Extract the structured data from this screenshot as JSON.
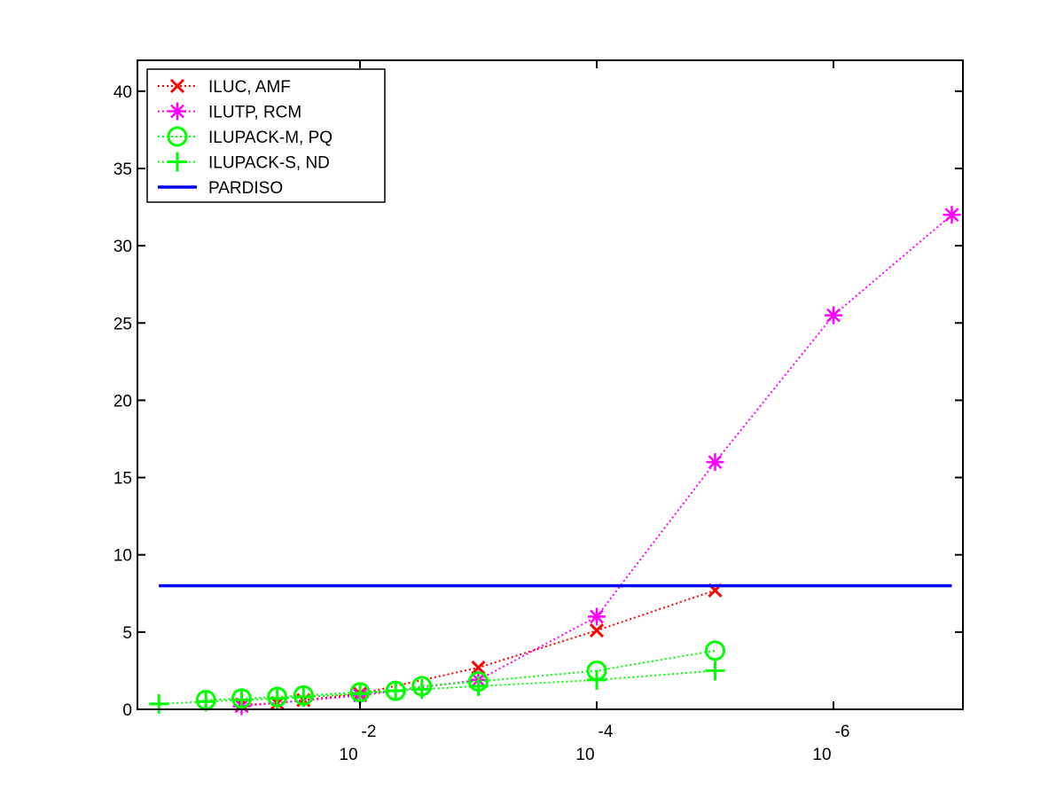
{
  "chart_data": {
    "type": "line",
    "title": "",
    "xlabel": "",
    "ylabel": "",
    "x_scale": "log-reversed",
    "xlim": [
      0.25,
      1.4e-07
    ],
    "ylim": [
      0,
      42
    ],
    "y_ticks": [
      0,
      5,
      10,
      15,
      20,
      25,
      30,
      35,
      40
    ],
    "x_ticks": [
      {
        "value": 0.01,
        "base": "10",
        "exponent": "-2"
      },
      {
        "value": 0.0001,
        "base": "10",
        "exponent": "-4"
      },
      {
        "value": 1e-06,
        "base": "10",
        "exponent": "-6"
      }
    ],
    "grid": false,
    "legend_position": "top-left",
    "series": [
      {
        "name": "ILUC, AMF",
        "color": "#ff0000",
        "marker": "x",
        "line_style": "dotted",
        "x": [
          0.1,
          0.05,
          0.03,
          0.01,
          0.001,
          0.0001,
          1e-05
        ],
        "y": [
          0.3,
          0.4,
          0.6,
          1.0,
          2.7,
          5.1,
          7.7
        ]
      },
      {
        "name": "ILUTP, RCM",
        "color": "#ff00ff",
        "marker": "asterisk",
        "line_style": "dotted",
        "x": [
          0.1,
          0.01,
          0.001,
          0.0001,
          1e-05,
          1e-06,
          1e-07
        ],
        "y": [
          0.2,
          0.9,
          1.9,
          6.0,
          16.0,
          25.5,
          32.0
        ]
      },
      {
        "name": "ILUPACK-M, PQ",
        "color": "#00ff00",
        "marker": "circle",
        "line_style": "dotted",
        "x": [
          0.2,
          0.1,
          0.05,
          0.03,
          0.01,
          0.005,
          0.003,
          0.001,
          0.0001,
          1e-05
        ],
        "y": [
          0.6,
          0.7,
          0.8,
          0.9,
          1.1,
          1.2,
          1.5,
          1.8,
          2.5,
          3.8
        ]
      },
      {
        "name": "ILUPACK-S, ND",
        "color": "#00ff00",
        "marker": "plus",
        "line_style": "dotted",
        "x": [
          0.5,
          0.2,
          0.1,
          0.05,
          0.03,
          0.01,
          0.005,
          0.003,
          0.001,
          0.0001,
          1e-05
        ],
        "y": [
          0.35,
          0.5,
          0.6,
          0.7,
          0.8,
          1.0,
          1.2,
          1.3,
          1.5,
          1.9,
          2.5
        ]
      },
      {
        "name": "PARDISO",
        "color": "#0000ff",
        "marker": "none",
        "line_style": "solid",
        "x": [
          0.5,
          1e-07
        ],
        "y": [
          8.0,
          8.0
        ]
      }
    ]
  }
}
